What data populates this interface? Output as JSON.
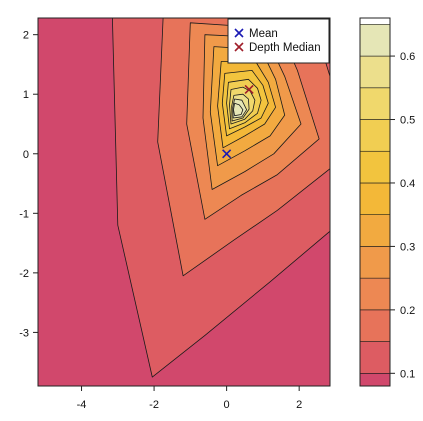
{
  "chart_data": {
    "type": "filled-contour",
    "xlim": [
      -5.2,
      2.85
    ],
    "ylim": [
      -3.9,
      2.28
    ],
    "x_ticks": [
      -4,
      -2,
      0,
      2
    ],
    "y_ticks": [
      -3,
      -2,
      -1,
      0,
      1,
      2
    ],
    "legend": {
      "position": "top-right",
      "entries": [
        {
          "marker": "x",
          "label": "Mean",
          "color": "#1a1ab4",
          "x": 0.0,
          "y": 0.0
        },
        {
          "marker": "x",
          "label": "Depth Median",
          "color": "#a01e2a",
          "x": 0.62,
          "y": 1.08
        }
      ]
    },
    "peak": {
      "x": 0.32,
      "y": 0.75
    },
    "levels": [
      0.05,
      0.1,
      0.15,
      0.2,
      0.25,
      0.3,
      0.35,
      0.4,
      0.45,
      0.5,
      0.55,
      0.6,
      0.65
    ],
    "level_colors": [
      "#d1486c",
      "#dd5c62",
      "#e7735a",
      "#ed8853",
      "#f09a4a",
      "#f2aa40",
      "#f3b838",
      "#f2c43e",
      "#f1ce52",
      "#f0d86c",
      "#ecdf8c",
      "#e5e6b6"
    ],
    "contours": [
      {
        "level": 0.1,
        "points": [
          [
            -2.05,
            -3.75
          ],
          [
            -0.6,
            -3.05
          ],
          [
            1.2,
            -2.15
          ],
          [
            2.85,
            -1.3
          ],
          [
            2.85,
            2.28
          ],
          [
            -3.15,
            2.28
          ],
          [
            -3.0,
            -1.2
          ]
        ]
      },
      {
        "level": 0.15,
        "points": [
          [
            -1.2,
            -2.05
          ],
          [
            0.2,
            -1.45
          ],
          [
            1.4,
            -0.95
          ],
          [
            2.85,
            -0.25
          ],
          [
            2.85,
            1.3
          ],
          [
            2.35,
            2.28
          ],
          [
            -1.75,
            2.28
          ],
          [
            -1.9,
            0.2
          ]
        ]
      },
      {
        "level": 0.2,
        "points": [
          [
            -0.6,
            -1.1
          ],
          [
            0.4,
            -0.7
          ],
          [
            1.4,
            -0.35
          ],
          [
            2.55,
            0.25
          ],
          [
            1.95,
            1.4
          ],
          [
            1.45,
            2.1
          ],
          [
            -1.0,
            2.2
          ],
          [
            -1.1,
            0.5
          ]
        ]
      },
      {
        "level": 0.25,
        "points": [
          [
            -0.4,
            -0.6
          ],
          [
            0.5,
            -0.3
          ],
          [
            1.3,
            0.0
          ],
          [
            2.05,
            0.5
          ],
          [
            1.6,
            1.3
          ],
          [
            1.1,
            1.95
          ],
          [
            -0.6,
            2.0
          ],
          [
            -0.65,
            0.6
          ]
        ]
      },
      {
        "level": 0.3,
        "points": [
          [
            -0.25,
            -0.2
          ],
          [
            0.5,
            0.05
          ],
          [
            1.2,
            0.3
          ],
          [
            1.6,
            0.65
          ],
          [
            1.35,
            1.25
          ],
          [
            0.95,
            1.75
          ],
          [
            -0.35,
            1.8
          ],
          [
            -0.45,
            0.7
          ]
        ]
      },
      {
        "level": 0.35,
        "points": [
          [
            -0.1,
            0.1
          ],
          [
            0.5,
            0.3
          ],
          [
            1.05,
            0.5
          ],
          [
            1.35,
            0.78
          ],
          [
            1.15,
            1.2
          ],
          [
            0.8,
            1.55
          ],
          [
            -0.15,
            1.55
          ],
          [
            -0.25,
            0.8
          ]
        ]
      },
      {
        "level": 0.4,
        "points": [
          [
            0.0,
            0.3
          ],
          [
            0.5,
            0.45
          ],
          [
            0.95,
            0.6
          ],
          [
            1.15,
            0.85
          ],
          [
            1.0,
            1.15
          ],
          [
            0.7,
            1.4
          ],
          [
            -0.05,
            1.35
          ],
          [
            -0.12,
            0.85
          ]
        ]
      },
      {
        "level": 0.45,
        "points": [
          [
            0.08,
            0.42
          ],
          [
            0.5,
            0.52
          ],
          [
            0.85,
            0.68
          ],
          [
            0.95,
            0.9
          ],
          [
            0.85,
            1.1
          ],
          [
            0.6,
            1.25
          ],
          [
            0.05,
            1.2
          ],
          [
            0.0,
            0.85
          ]
        ]
      },
      {
        "level": 0.5,
        "points": [
          [
            0.12,
            0.5
          ],
          [
            0.5,
            0.58
          ],
          [
            0.72,
            0.72
          ],
          [
            0.78,
            0.9
          ],
          [
            0.65,
            1.05
          ],
          [
            0.45,
            1.12
          ],
          [
            0.12,
            1.08
          ],
          [
            0.08,
            0.82
          ]
        ]
      },
      {
        "level": 0.55,
        "points": [
          [
            0.15,
            0.55
          ],
          [
            0.45,
            0.6
          ],
          [
            0.62,
            0.75
          ],
          [
            0.6,
            0.92
          ],
          [
            0.45,
            1.0
          ],
          [
            0.2,
            0.98
          ],
          [
            0.14,
            0.8
          ]
        ]
      },
      {
        "level": 0.6,
        "points": [
          [
            0.18,
            0.6
          ],
          [
            0.42,
            0.62
          ],
          [
            0.55,
            0.74
          ],
          [
            0.42,
            0.9
          ],
          [
            0.22,
            0.92
          ],
          [
            0.17,
            0.78
          ]
        ]
      },
      {
        "level": 0.65,
        "points": [
          [
            0.22,
            0.64
          ],
          [
            0.4,
            0.66
          ],
          [
            0.45,
            0.74
          ],
          [
            0.35,
            0.82
          ],
          [
            0.22,
            0.85
          ],
          [
            0.19,
            0.74
          ]
        ]
      }
    ],
    "colorbar": {
      "range": [
        0.08,
        0.66
      ],
      "ticks": [
        0.1,
        0.2,
        0.3,
        0.4,
        0.5,
        0.6
      ]
    }
  }
}
